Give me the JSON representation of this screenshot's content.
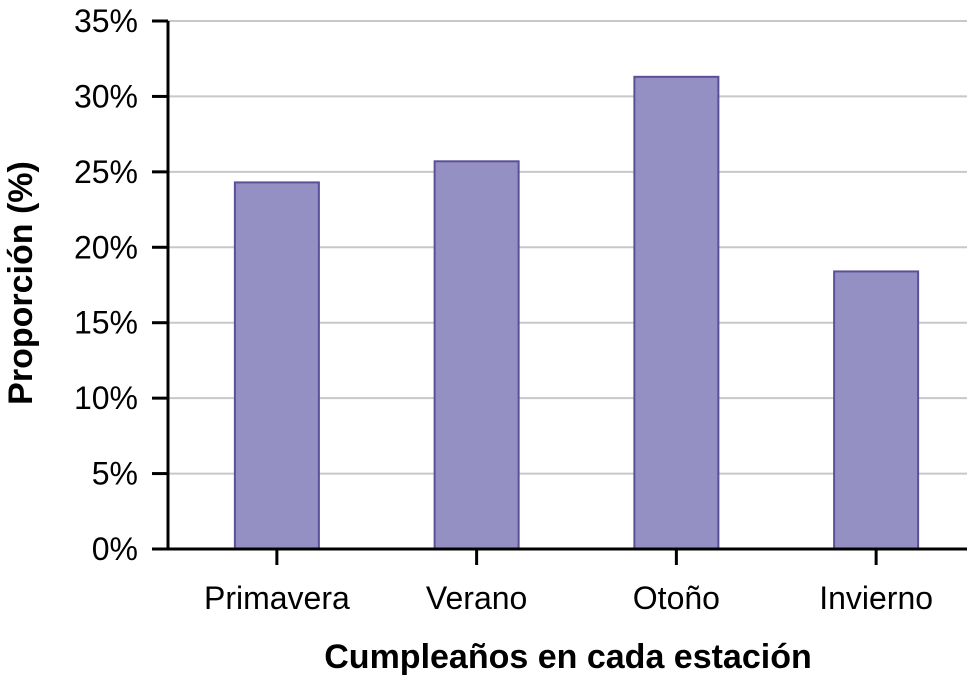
{
  "colors": {
    "bar_fill": "#9590c4",
    "bar_stroke": "#5b4f98",
    "grid": "#c8c8c8",
    "axis": "#000000"
  },
  "chart_data": {
    "type": "bar",
    "title": "",
    "categories": [
      "Primavera",
      "Verano",
      "Otoño",
      "Invierno"
    ],
    "values": [
      24.3,
      25.7,
      31.3,
      18.4
    ],
    "xlabel": "Cumpleaños en cada estación",
    "ylabel": "Proporción (%)",
    "ylim": [
      0,
      35
    ],
    "yticks": [
      0,
      5,
      10,
      15,
      20,
      25,
      30,
      35
    ],
    "ytick_labels": [
      "0%",
      "5%",
      "10%",
      "15%",
      "20%",
      "25%",
      "30%",
      "35%"
    ],
    "grid": true,
    "legend": "none"
  }
}
